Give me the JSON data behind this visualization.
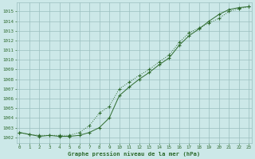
{
  "line1_x": [
    0,
    1,
    2,
    3,
    4,
    5,
    6,
    7,
    8,
    9,
    10,
    11,
    12,
    13,
    14,
    15,
    16,
    17,
    18,
    19,
    20,
    21,
    22,
    23
  ],
  "line1_y": [
    1002.5,
    1002.3,
    1002.1,
    1002.2,
    1002.1,
    1002.1,
    1002.2,
    1002.5,
    1003.0,
    1004.0,
    1006.3,
    1007.2,
    1008.0,
    1008.7,
    1009.5,
    1010.2,
    1011.5,
    1012.5,
    1013.2,
    1014.0,
    1014.7,
    1015.2,
    1015.4,
    1015.5
  ],
  "line2_x": [
    0,
    1,
    2,
    3,
    4,
    5,
    6,
    7,
    8,
    9,
    10,
    11,
    12,
    13,
    14,
    15,
    16,
    17,
    18,
    19,
    20,
    21,
    22,
    23
  ],
  "line2_y": [
    1002.5,
    1002.3,
    1002.2,
    1002.2,
    1002.2,
    1002.2,
    1002.5,
    1003.2,
    1004.5,
    1005.2,
    1007.0,
    1007.7,
    1008.4,
    1009.0,
    1009.8,
    1010.5,
    1011.8,
    1012.8,
    1013.3,
    1013.8,
    1014.3,
    1015.0,
    1015.3,
    1015.5
  ],
  "line_color": "#2d6a2d",
  "bg_color": "#cce8e8",
  "grid_color": "#9bbfbf",
  "title": "Graphe pression niveau de la mer (hPa)",
  "xticks": [
    0,
    1,
    2,
    3,
    4,
    5,
    6,
    7,
    8,
    9,
    10,
    11,
    12,
    13,
    14,
    15,
    16,
    17,
    18,
    19,
    20,
    21,
    22,
    23
  ],
  "yticks": [
    1002,
    1003,
    1004,
    1005,
    1006,
    1007,
    1008,
    1009,
    1010,
    1011,
    1012,
    1013,
    1014,
    1015
  ],
  "ylim": [
    1001.4,
    1015.9
  ],
  "xlim": [
    -0.3,
    23.3
  ]
}
